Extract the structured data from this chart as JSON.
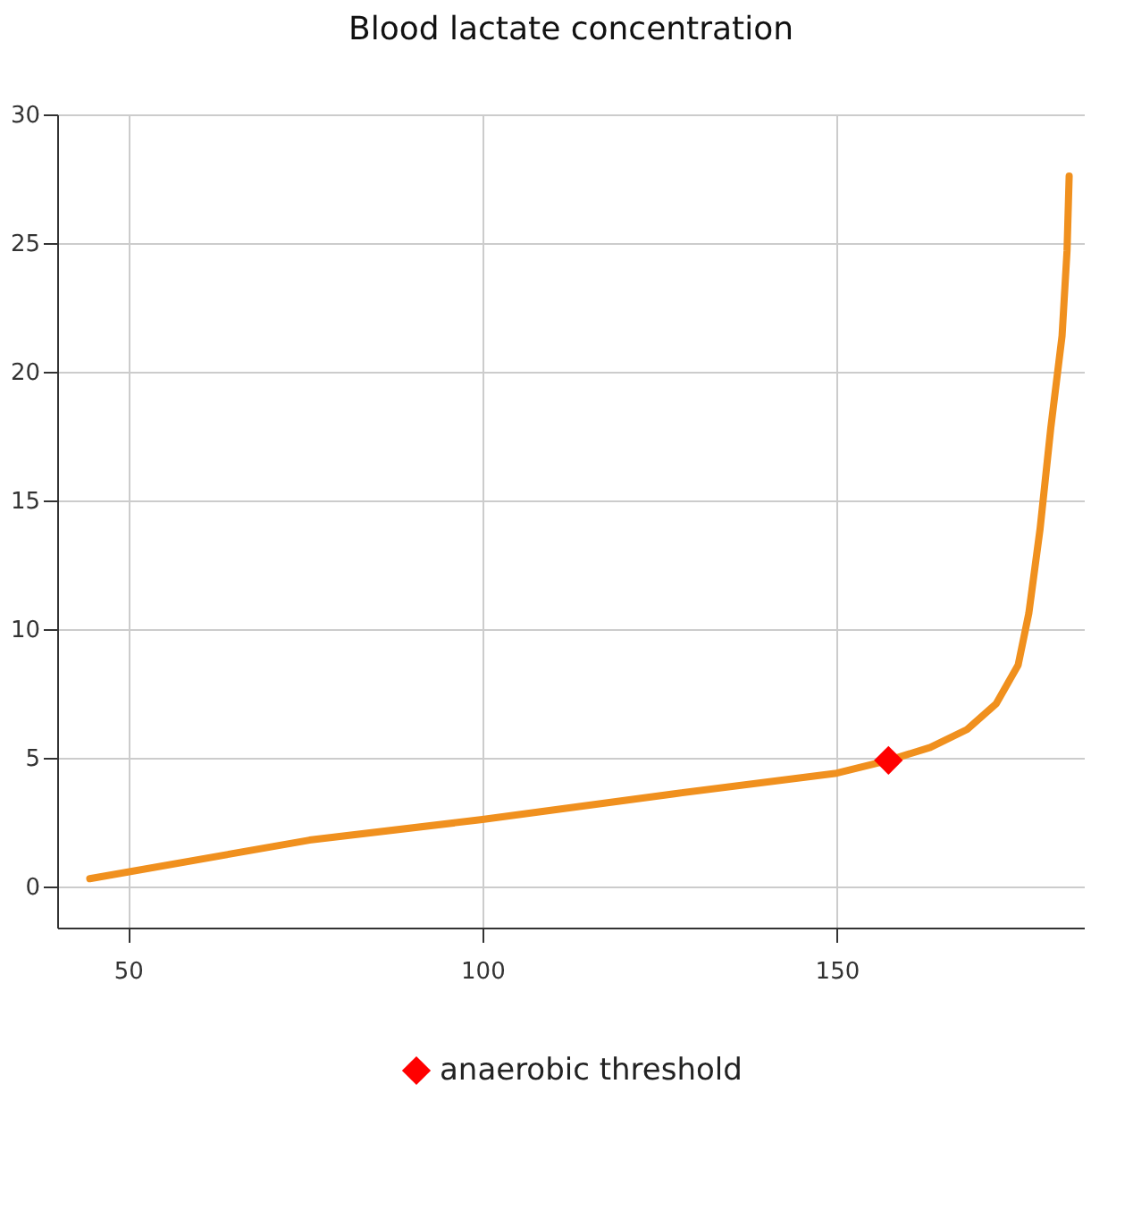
{
  "chart_data": {
    "type": "line",
    "title": "Blood lactate concentration",
    "xlim": [
      40,
      185
    ],
    "xticks": [
      50,
      100,
      150
    ],
    "ylim": [
      -1.6,
      30
    ],
    "yticks": [
      0,
      5,
      10,
      15,
      20,
      25,
      30
    ],
    "grid": true,
    "legend": "bottom",
    "series": [
      {
        "color": "#f0901e",
        "marker": "none",
        "x": [
          44.6,
          75.6,
          100,
          127.1,
          150,
          157.3,
          163.2,
          168.4,
          172.5,
          175.6,
          177.1,
          178.7,
          180.2,
          181.8,
          182.5,
          182.8
        ],
        "values": [
          0.3,
          1.8,
          2.6,
          3.6,
          4.4,
          4.9,
          5.4,
          6.1,
          7.1,
          8.6,
          10.6,
          13.9,
          17.8,
          21.4,
          24.7,
          27.6
        ]
      },
      {
        "type": "scatter",
        "name": "anaerobic threshold",
        "color": "#ff0000",
        "marker": "diamond",
        "x": [
          157.3
        ],
        "values": [
          4.9
        ]
      }
    ]
  }
}
